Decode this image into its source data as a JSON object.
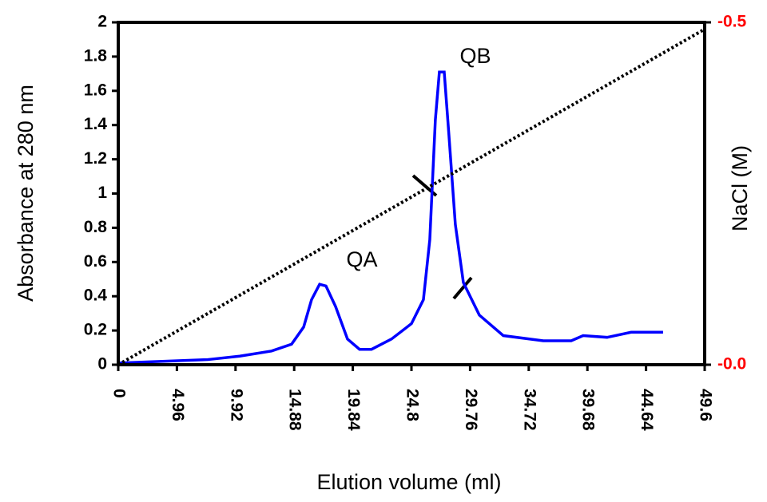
{
  "chart_data": {
    "type": "line",
    "x_label": "Elution volume (ml)",
    "y_label": "Absorbance at 280 nm",
    "y2_label": "NaCl (M)",
    "annotations": [
      "QA",
      "QB"
    ],
    "xlim": [
      0,
      49.6
    ],
    "xticks": [
      0,
      4.96,
      9.92,
      14.88,
      19.84,
      24.8,
      29.76,
      34.72,
      39.68,
      44.64,
      49.6
    ],
    "ylim": [
      0,
      2
    ],
    "yticks": [
      0,
      0.2,
      0.4,
      0.6,
      0.8,
      1,
      1.2,
      1.4,
      1.6,
      1.8,
      2
    ],
    "y2lim": [
      0,
      -0.5
    ],
    "y2ticks": [
      {
        "value": 0,
        "label": "-0.0"
      },
      -0.5
    ],
    "y2_color": "#ff0000",
    "series": [
      {
        "color": "#0000ff",
        "x": [
          0,
          7.57,
          10.27,
          12.97,
          14.66,
          15.68,
          16.35,
          17.03,
          17.57,
          18.38,
          19.39,
          20.41,
          21.42,
          23.11,
          24.8,
          25.81,
          26.35,
          26.82,
          27.16,
          27.57,
          27.97,
          28.51,
          29.19,
          30.54,
          32.57,
          35.95,
          38.31,
          39.32,
          41.35,
          43.38,
          46.08
        ],
        "values": [
          0.01,
          0.03,
          0.05,
          0.08,
          0.12,
          0.22,
          0.38,
          0.47,
          0.46,
          0.34,
          0.15,
          0.09,
          0.09,
          0.15,
          0.24,
          0.38,
          0.73,
          1.43,
          1.71,
          1.71,
          1.34,
          0.82,
          0.48,
          0.29,
          0.17,
          0.14,
          0.14,
          0.17,
          0.16,
          0.19,
          0.19
        ]
      },
      {
        "color": "#000000",
        "axis": "y2",
        "dashed": true,
        "x": [
          0,
          49.6
        ],
        "values": [
          0,
          -0.49
        ]
      }
    ]
  }
}
